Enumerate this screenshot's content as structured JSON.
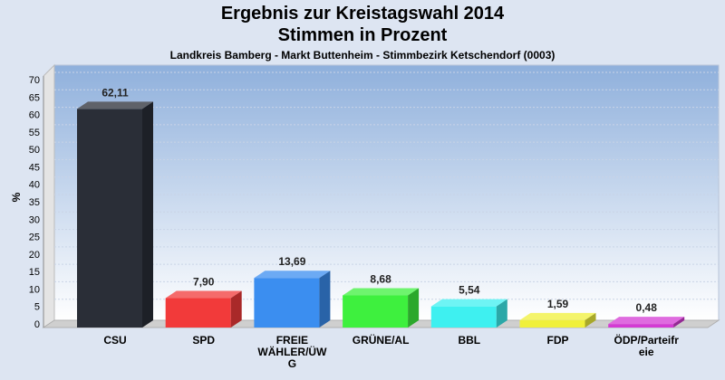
{
  "header": {
    "title_line1": "Ergebnis zur Kreistagswahl 2014",
    "title_line2": "Stimmen in Prozent",
    "subtitle": "Landkreis Bamberg - Markt Buttenheim - Stimmbezirk Ketschendorf (0003)"
  },
  "chart_data": {
    "type": "bar",
    "title": "Ergebnis zur Kreistagswahl 2014 Stimmen in Prozent",
    "subtitle": "Landkreis Bamberg - Markt Buttenheim - Stimmbezirk Ketschendorf (0003)",
    "ylabel": "%",
    "xlabel": "",
    "ylim": [
      0,
      70
    ],
    "yticks": [
      0,
      5,
      10,
      15,
      20,
      25,
      30,
      35,
      40,
      45,
      50,
      55,
      60,
      65,
      70
    ],
    "grid": true,
    "categories": [
      "CSU",
      "SPD",
      "FREIE WÄHLER/ÜWG",
      "GRÜNE/AL",
      "BBL",
      "FDP",
      "ÖDP/Parteifreie"
    ],
    "category_lines": [
      [
        "CSU"
      ],
      [
        "SPD"
      ],
      [
        "FREIE",
        "WÄHLER/ÜW",
        "G"
      ],
      [
        "GRÜNE/AL"
      ],
      [
        "BBL"
      ],
      [
        "FDP"
      ],
      [
        "ÖDP/Parteifr",
        "eie"
      ]
    ],
    "values": [
      62.11,
      7.9,
      13.69,
      8.68,
      5.54,
      1.59,
      0.48
    ],
    "value_labels": [
      "62,11",
      "7,90",
      "13,69",
      "8,68",
      "5,54",
      "1,59",
      "0,48"
    ],
    "colors": [
      "#2a2e37",
      "#f23a3a",
      "#3b8ef0",
      "#3ef03e",
      "#3ef0f0",
      "#f0f03a",
      "#d43ad4"
    ]
  }
}
